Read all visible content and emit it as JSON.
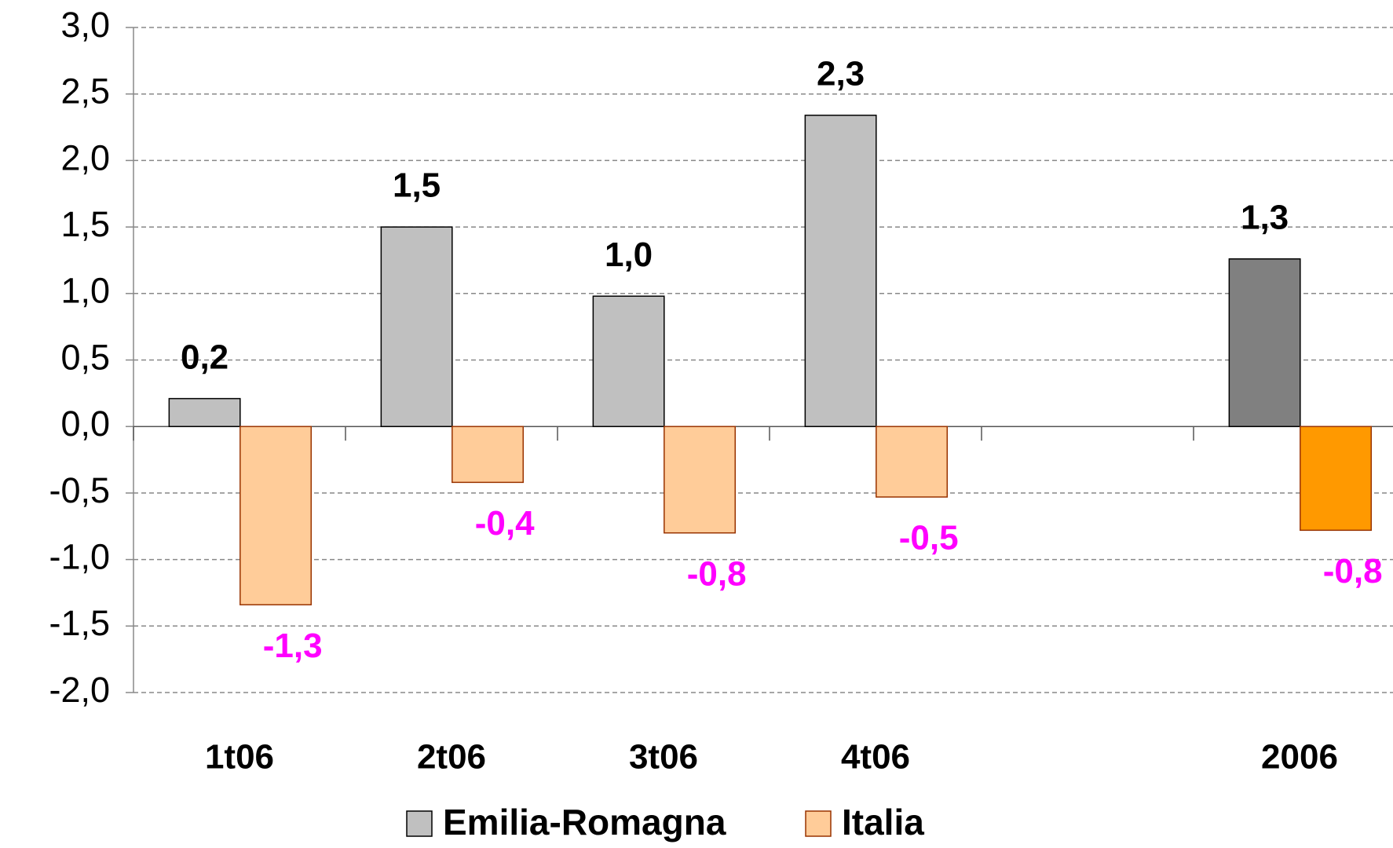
{
  "chart_data": {
    "type": "bar",
    "categories": [
      "1t06",
      "2t06",
      "3t06",
      "4t06",
      null,
      "2006"
    ],
    "series": [
      {
        "name": "Emilia-Romagna",
        "color": "#c0c0c0",
        "colors": [
          "#c0c0c0",
          "#c0c0c0",
          "#c0c0c0",
          "#c0c0c0",
          null,
          "#808080"
        ],
        "values": [
          0.21,
          1.5,
          0.98,
          2.34,
          null,
          1.26
        ],
        "value_labels": [
          "0,2",
          "1,5",
          "1,0",
          "2,3",
          null,
          "1,3"
        ]
      },
      {
        "name": "Italia",
        "color": "#ffcc99",
        "colors": [
          "#ffcc99",
          "#ffcc99",
          "#ffcc99",
          "#ffcc99",
          null,
          "#ff9900"
        ],
        "values": [
          -1.34,
          -0.42,
          -0.8,
          -0.53,
          null,
          -0.78
        ],
        "value_labels": [
          "-1,3",
          "-0,4",
          "-0,8",
          "-0,5",
          null,
          "-0,8"
        ]
      }
    ],
    "ylim": [
      -2,
      3
    ],
    "yticks": [
      {
        "value": -2,
        "label": "-2,0"
      },
      {
        "value": -1.5,
        "label": "-1,5"
      },
      {
        "value": -1,
        "label": "-1,0"
      },
      {
        "value": -0.5,
        "label": "-0,5"
      },
      {
        "value": 0,
        "label": "0,0"
      },
      {
        "value": 0.5,
        "label": "0,5"
      },
      {
        "value": 1,
        "label": "1,0"
      },
      {
        "value": 1.5,
        "label": "1,5"
      },
      {
        "value": 2,
        "label": "2,0"
      },
      {
        "value": 2.5,
        "label": "2,5"
      },
      {
        "value": 3,
        "label": "3,0"
      }
    ],
    "grid": true,
    "legend": "bottom"
  }
}
